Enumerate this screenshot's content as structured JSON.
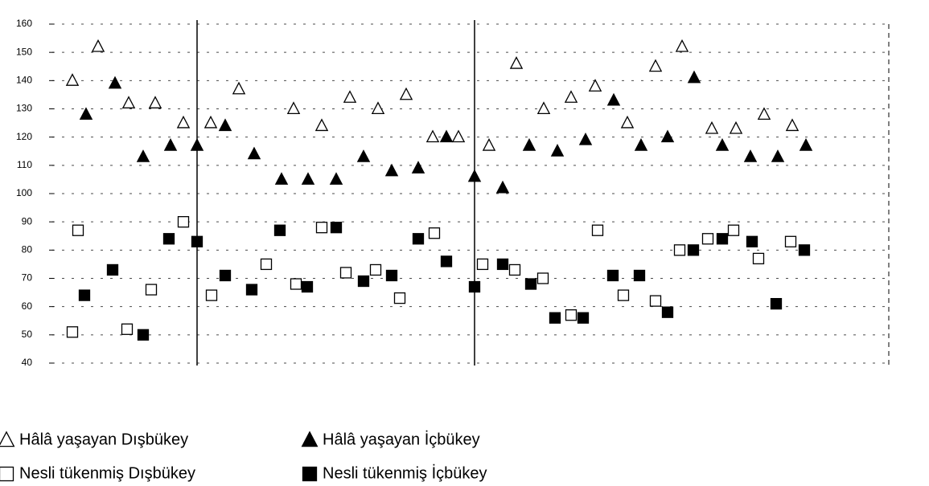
{
  "chart_data": {
    "type": "scatter",
    "xlim": [
      0,
      104
    ],
    "ylim": [
      40,
      160
    ],
    "yticks": [
      40,
      50,
      60,
      70,
      80,
      90,
      100,
      110,
      120,
      130,
      140,
      150,
      160
    ],
    "grid": true,
    "series": [
      {
        "name": "Hâlâ yaşayan Dışbükey",
        "marker": "triangle",
        "filled": false,
        "color": "#000000",
        "x": [
          2.5,
          5.7,
          9.5,
          12.8,
          16.3,
          19.7,
          23.2,
          30,
          33.5,
          37,
          40.5,
          44,
          47.3,
          50.5,
          54.3,
          57.7,
          61.1,
          64.5,
          67.5,
          71.5,
          75,
          78.3,
          82,
          85,
          88.5,
          92
        ],
        "values": [
          140,
          152,
          132,
          132,
          125,
          125,
          137,
          130,
          124,
          134,
          130,
          135,
          120,
          120,
          117,
          146,
          130,
          134,
          138,
          125,
          145,
          152,
          123,
          123,
          128,
          124
        ]
      },
      {
        "name": "Hâlâ yaşayan İçbükey",
        "marker": "triangle",
        "filled": true,
        "color": "#000000",
        "x": [
          4.2,
          7.8,
          11.3,
          14.7,
          18,
          21.5,
          25.1,
          28.5,
          31.8,
          35.3,
          38.7,
          42.2,
          45.5,
          49,
          52.5,
          56,
          59.3,
          62.8,
          66.3,
          69.8,
          73.2,
          76.5,
          79.8,
          83.3,
          86.8,
          90.2,
          93.7
        ],
        "values": [
          128,
          139,
          113,
          117,
          117,
          124,
          114,
          105,
          105,
          105,
          113,
          108,
          109,
          120,
          106,
          102,
          117,
          115,
          119,
          133,
          117,
          120,
          141,
          117,
          113,
          113,
          117
        ]
      },
      {
        "name": "Nesli tükenmiş Dışbükey",
        "marker": "square",
        "filled": false,
        "color": "#000000",
        "x": [
          2.5,
          3.2,
          9.3,
          12.3,
          16.3,
          19.8,
          26.6,
          30.3,
          33.5,
          36.5,
          40.2,
          43.2,
          47.5,
          53.5,
          57.5,
          61,
          64.5,
          67.8,
          71,
          75,
          78,
          81.5,
          84.7,
          87.8,
          91.8
        ],
        "values": [
          51,
          87,
          52,
          66,
          90,
          64,
          75,
          68,
          88,
          72,
          73,
          63,
          86,
          75,
          73,
          70,
          57,
          87,
          64,
          62,
          80,
          84,
          87,
          77,
          83
        ]
      },
      {
        "name": "Nesli tükenmiş İçbükey",
        "marker": "square",
        "filled": true,
        "color": "#000000",
        "x": [
          4,
          7.5,
          11.3,
          14.5,
          18,
          21.5,
          24.8,
          28.3,
          31.7,
          35.3,
          38.7,
          42.2,
          45.5,
          49,
          52.5,
          56,
          59.5,
          62.5,
          66,
          69.7,
          73,
          76.5,
          79.7,
          83.3,
          87,
          90,
          93.5
        ],
        "values": [
          64,
          73,
          50,
          84,
          83,
          71,
          66,
          87,
          67,
          88,
          69,
          71,
          84,
          76,
          67,
          75,
          68,
          56,
          56,
          71,
          71,
          58,
          80,
          84,
          83,
          61,
          80
        ]
      }
    ]
  }
}
